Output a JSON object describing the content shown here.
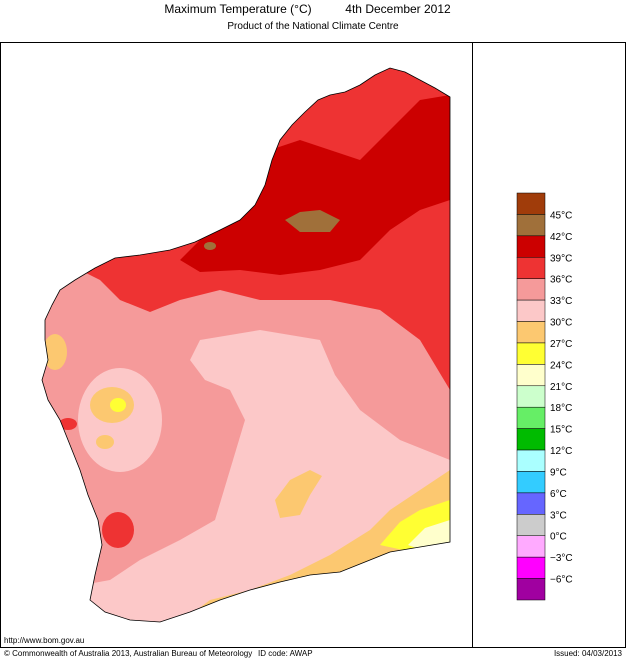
{
  "header": {
    "title": "Maximum Temperature (°C)",
    "date": "4th December 2012",
    "subtitle": "Product of the National Climate Centre"
  },
  "legend": {
    "colors": [
      "#a03c0a",
      "#a0703a",
      "#cc0000",
      "#ee3333",
      "#f59a9a",
      "#fcc8c8",
      "#fcc870",
      "#ffff33",
      "#ffffcc",
      "#ccffcc",
      "#66ee66",
      "#00bb00",
      "#aaffff",
      "#33ccff",
      "#6666ff",
      "#cccccc",
      "#ffaaff",
      "#ff00ff",
      "#a000a0"
    ],
    "labels": [
      "45°C",
      "42°C",
      "39°C",
      "36°C",
      "33°C",
      "30°C",
      "27°C",
      "24°C",
      "21°C",
      "18°C",
      "15°C",
      "12°C",
      "9°C",
      "6°C",
      "3°C",
      "0°C",
      "−3°C",
      "−6°C"
    ]
  },
  "footer": {
    "url": "http://www.bom.gov.au",
    "copyright": "© Commonwealth of Australia 2013, Australian Bureau of Meteorology",
    "id_code": "ID code: AWAP",
    "issued": "Issued: 04/03/2013"
  }
}
